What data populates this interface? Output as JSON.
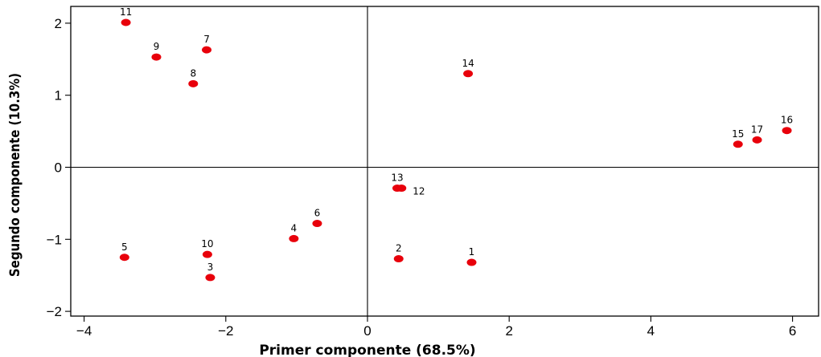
{
  "chart_data": {
    "type": "scatter",
    "title": "",
    "xlabel": "Primer componente (68.5%)",
    "ylabel": "Segundo componente (10.3%)",
    "xlim": [
      -4.2,
      6.5
    ],
    "ylim": [
      -2.1,
      2.2
    ],
    "xticks": [
      -4,
      -2,
      0,
      2,
      4,
      6
    ],
    "yticks": [
      -2,
      -1,
      0,
      1,
      2
    ],
    "reference_lines": {
      "x": 0,
      "y": 0
    },
    "grid": false,
    "marker_color": "#e8000b",
    "points": [
      {
        "label": "1",
        "x": 1.47,
        "y": -1.32
      },
      {
        "label": "2",
        "x": 0.44,
        "y": -1.27
      },
      {
        "label": "3",
        "x": -2.22,
        "y": -1.53
      },
      {
        "label": "4",
        "x": -1.04,
        "y": -0.99
      },
      {
        "label": "5",
        "x": -3.43,
        "y": -1.25
      },
      {
        "label": "6",
        "x": -0.71,
        "y": -0.78
      },
      {
        "label": "7",
        "x": -2.27,
        "y": 1.63
      },
      {
        "label": "8",
        "x": -2.46,
        "y": 1.16
      },
      {
        "label": "9",
        "x": -2.98,
        "y": 1.53
      },
      {
        "label": "10",
        "x": -2.26,
        "y": -1.21
      },
      {
        "label": "11",
        "x": -3.41,
        "y": 2.01
      },
      {
        "label": "12",
        "x": 0.48,
        "y": -0.29
      },
      {
        "label": "13",
        "x": 0.42,
        "y": -0.29
      },
      {
        "label": "14",
        "x": 1.42,
        "y": 1.3
      },
      {
        "label": "15",
        "x": 5.23,
        "y": 0.32
      },
      {
        "label": "16",
        "x": 5.92,
        "y": 0.51
      },
      {
        "label": "17",
        "x": 5.5,
        "y": 0.38
      }
    ]
  }
}
